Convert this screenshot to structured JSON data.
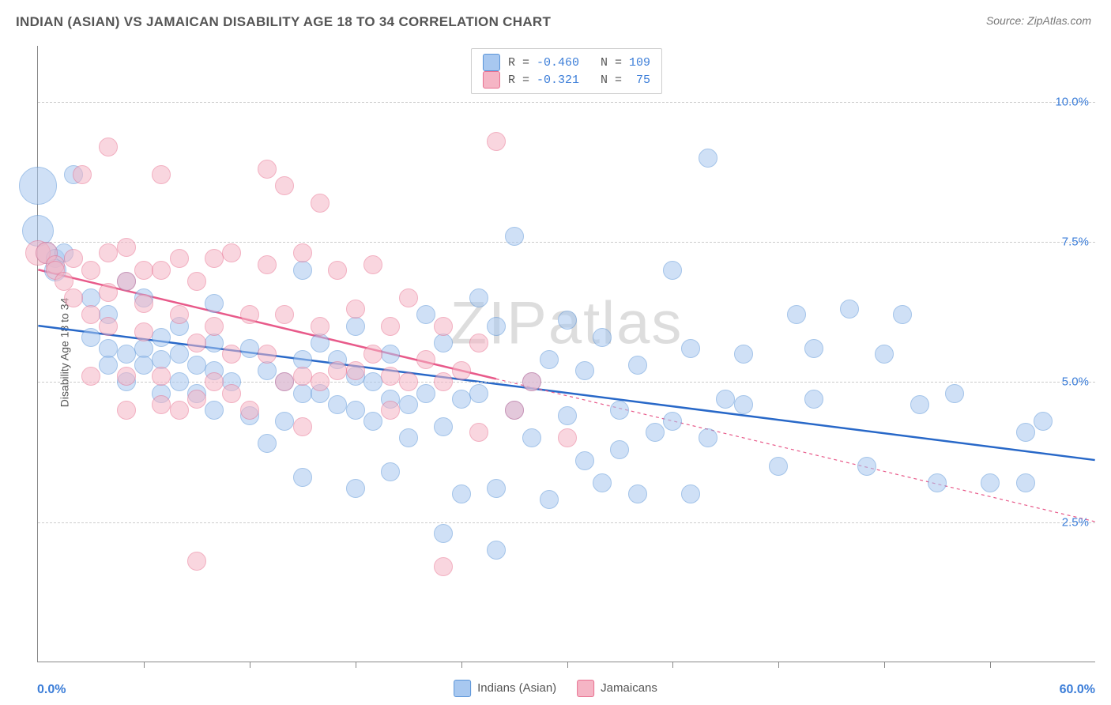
{
  "title": "INDIAN (ASIAN) VS JAMAICAN DISABILITY AGE 18 TO 34 CORRELATION CHART",
  "source": "Source: ZipAtlas.com",
  "ylabel": "Disability Age 18 to 34",
  "watermark": "ZIPatlas",
  "chart": {
    "type": "scatter",
    "xlim": [
      0,
      60
    ],
    "ylim": [
      0,
      11
    ],
    "x_left_label": "0.0%",
    "x_right_label": "60.0%",
    "x_label_color": "#3b7dd8",
    "xtick_positions": [
      6,
      12,
      18,
      24,
      30,
      36,
      42,
      48,
      54
    ],
    "yticks": [
      {
        "value": 2.5,
        "label": "2.5%",
        "color": "#3b7dd8"
      },
      {
        "value": 5.0,
        "label": "5.0%",
        "color": "#3b7dd8"
      },
      {
        "value": 7.5,
        "label": "7.5%",
        "color": "#3b7dd8"
      },
      {
        "value": 10.0,
        "label": "10.0%",
        "color": "#3b7dd8"
      }
    ],
    "grid_color": "#cccccc",
    "background_color": "#ffffff",
    "series": [
      {
        "name": "Indians (Asian)",
        "fill": "#a8c8f0",
        "stroke": "#5a94d8",
        "fill_opacity": 0.55,
        "line_color": "#2868c8",
        "line_width": 2.5,
        "line_dash": "none",
        "R": "-0.460",
        "N": "109",
        "trend": {
          "x1": 0,
          "y1": 6.0,
          "x2": 60,
          "y2": 3.6
        },
        "points": [
          [
            0,
            8.5,
            24
          ],
          [
            0,
            7.7,
            20
          ],
          [
            0.5,
            7.3,
            14
          ],
          [
            1,
            7.2,
            12
          ],
          [
            1,
            7.0,
            14
          ],
          [
            1.5,
            7.3,
            12
          ],
          [
            2,
            8.7,
            12
          ],
          [
            3,
            6.5,
            12
          ],
          [
            3,
            5.8,
            12
          ],
          [
            4,
            6.2,
            12
          ],
          [
            4,
            5.6,
            12
          ],
          [
            4,
            5.3,
            12
          ],
          [
            5,
            6.8,
            12
          ],
          [
            5,
            5.5,
            12
          ],
          [
            5,
            5.0,
            12
          ],
          [
            6,
            6.5,
            12
          ],
          [
            6,
            5.6,
            12
          ],
          [
            6,
            5.3,
            12
          ],
          [
            7,
            5.8,
            12
          ],
          [
            7,
            5.4,
            12
          ],
          [
            7,
            4.8,
            12
          ],
          [
            8,
            6.0,
            12
          ],
          [
            8,
            5.5,
            12
          ],
          [
            8,
            5.0,
            12
          ],
          [
            9,
            5.3,
            12
          ],
          [
            9,
            4.8,
            12
          ],
          [
            10,
            6.4,
            12
          ],
          [
            10,
            5.7,
            12
          ],
          [
            10,
            5.2,
            12
          ],
          [
            10,
            4.5,
            12
          ],
          [
            11,
            5.0,
            12
          ],
          [
            12,
            5.6,
            12
          ],
          [
            12,
            4.4,
            12
          ],
          [
            13,
            5.2,
            12
          ],
          [
            13,
            3.9,
            12
          ],
          [
            14,
            5.0,
            12
          ],
          [
            14,
            4.3,
            12
          ],
          [
            15,
            7.0,
            12
          ],
          [
            15,
            5.4,
            12
          ],
          [
            15,
            4.8,
            12
          ],
          [
            15,
            3.3,
            12
          ],
          [
            16,
            5.7,
            12
          ],
          [
            16,
            4.8,
            12
          ],
          [
            17,
            5.4,
            12
          ],
          [
            17,
            4.6,
            12
          ],
          [
            18,
            6.0,
            12
          ],
          [
            18,
            5.1,
            12
          ],
          [
            18,
            4.5,
            12
          ],
          [
            18,
            3.1,
            12
          ],
          [
            19,
            5.0,
            12
          ],
          [
            19,
            4.3,
            12
          ],
          [
            20,
            5.5,
            12
          ],
          [
            20,
            4.7,
            12
          ],
          [
            20,
            3.4,
            12
          ],
          [
            21,
            4.6,
            12
          ],
          [
            21,
            4.0,
            12
          ],
          [
            22,
            6.2,
            12
          ],
          [
            22,
            4.8,
            12
          ],
          [
            23,
            5.7,
            12
          ],
          [
            23,
            4.2,
            12
          ],
          [
            23,
            2.3,
            12
          ],
          [
            24,
            4.7,
            12
          ],
          [
            24,
            3.0,
            12
          ],
          [
            25,
            6.5,
            12
          ],
          [
            25,
            4.8,
            12
          ],
          [
            26,
            6.0,
            12
          ],
          [
            26,
            3.1,
            12
          ],
          [
            26,
            2.0,
            12
          ],
          [
            27,
            7.6,
            12
          ],
          [
            27,
            4.5,
            12
          ],
          [
            28,
            5.0,
            12
          ],
          [
            28,
            4.0,
            12
          ],
          [
            29,
            5.4,
            12
          ],
          [
            29,
            2.9,
            12
          ],
          [
            30,
            6.1,
            12
          ],
          [
            30,
            4.4,
            12
          ],
          [
            31,
            5.2,
            12
          ],
          [
            31,
            3.6,
            12
          ],
          [
            32,
            5.8,
            12
          ],
          [
            32,
            3.2,
            12
          ],
          [
            33,
            4.5,
            12
          ],
          [
            33,
            3.8,
            12
          ],
          [
            34,
            5.3,
            12
          ],
          [
            34,
            3.0,
            12
          ],
          [
            35,
            4.1,
            12
          ],
          [
            36,
            7.0,
            12
          ],
          [
            36,
            4.3,
            12
          ],
          [
            37,
            5.6,
            12
          ],
          [
            37,
            3.0,
            12
          ],
          [
            38,
            4.0,
            12
          ],
          [
            38,
            9.0,
            12
          ],
          [
            39,
            4.7,
            12
          ],
          [
            40,
            5.5,
            12
          ],
          [
            40,
            4.6,
            12
          ],
          [
            42,
            3.5,
            12
          ],
          [
            43,
            6.2,
            12
          ],
          [
            44,
            4.7,
            12
          ],
          [
            44,
            5.6,
            12
          ],
          [
            46,
            6.3,
            12
          ],
          [
            47,
            3.5,
            12
          ],
          [
            48,
            5.5,
            12
          ],
          [
            49,
            6.2,
            12
          ],
          [
            50,
            4.6,
            12
          ],
          [
            51,
            3.2,
            12
          ],
          [
            52,
            4.8,
            12
          ],
          [
            54,
            3.2,
            12
          ],
          [
            56,
            4.1,
            12
          ],
          [
            56,
            3.2,
            12
          ],
          [
            57,
            4.3,
            12
          ]
        ]
      },
      {
        "name": "Jamaicans",
        "fill": "#f5b5c5",
        "stroke": "#e87090",
        "fill_opacity": 0.55,
        "line_color": "#e85a8a",
        "line_width": 2.5,
        "line_dash": "none",
        "line_dash_after": "4,4",
        "trend": {
          "x1": 0,
          "y1": 7.0,
          "x2": 60,
          "y2": 2.5,
          "solid_until_x": 26
        },
        "R": "-0.321",
        "N": "75",
        "points": [
          [
            0,
            7.3,
            16
          ],
          [
            0.5,
            7.3,
            14
          ],
          [
            1,
            7.1,
            12
          ],
          [
            1,
            7.0,
            12
          ],
          [
            1.5,
            6.8,
            12
          ],
          [
            2,
            7.2,
            12
          ],
          [
            2,
            6.5,
            12
          ],
          [
            2.5,
            8.7,
            12
          ],
          [
            3,
            7.0,
            12
          ],
          [
            3,
            6.2,
            12
          ],
          [
            3,
            5.1,
            12
          ],
          [
            4,
            9.2,
            12
          ],
          [
            4,
            7.3,
            12
          ],
          [
            4,
            6.6,
            12
          ],
          [
            4,
            6.0,
            12
          ],
          [
            5,
            7.4,
            12
          ],
          [
            5,
            6.8,
            12
          ],
          [
            5,
            5.1,
            12
          ],
          [
            5,
            4.5,
            12
          ],
          [
            6,
            7.0,
            12
          ],
          [
            6,
            6.4,
            12
          ],
          [
            6,
            5.9,
            12
          ],
          [
            7,
            8.7,
            12
          ],
          [
            7,
            7.0,
            12
          ],
          [
            7,
            5.1,
            12
          ],
          [
            7,
            4.6,
            12
          ],
          [
            8,
            7.2,
            12
          ],
          [
            8,
            6.2,
            12
          ],
          [
            8,
            4.5,
            12
          ],
          [
            9,
            6.8,
            12
          ],
          [
            9,
            5.7,
            12
          ],
          [
            9,
            4.7,
            12
          ],
          [
            9,
            1.8,
            12
          ],
          [
            10,
            7.2,
            12
          ],
          [
            10,
            6.0,
            12
          ],
          [
            10,
            5.0,
            12
          ],
          [
            11,
            7.3,
            12
          ],
          [
            11,
            5.5,
            12
          ],
          [
            11,
            4.8,
            12
          ],
          [
            12,
            6.2,
            12
          ],
          [
            12,
            4.5,
            12
          ],
          [
            13,
            8.8,
            12
          ],
          [
            13,
            7.1,
            12
          ],
          [
            13,
            5.5,
            12
          ],
          [
            14,
            8.5,
            12
          ],
          [
            14,
            6.2,
            12
          ],
          [
            14,
            5.0,
            12
          ],
          [
            15,
            7.3,
            12
          ],
          [
            15,
            5.1,
            12
          ],
          [
            15,
            4.2,
            12
          ],
          [
            16,
            8.2,
            12
          ],
          [
            16,
            6.0,
            12
          ],
          [
            16,
            5.0,
            12
          ],
          [
            17,
            7.0,
            12
          ],
          [
            17,
            5.2,
            12
          ],
          [
            18,
            6.3,
            12
          ],
          [
            18,
            5.2,
            12
          ],
          [
            19,
            7.1,
            12
          ],
          [
            19,
            5.5,
            12
          ],
          [
            20,
            6.0,
            12
          ],
          [
            20,
            5.1,
            12
          ],
          [
            20,
            4.5,
            12
          ],
          [
            21,
            6.5,
            12
          ],
          [
            21,
            5.0,
            12
          ],
          [
            22,
            5.4,
            12
          ],
          [
            23,
            6.0,
            12
          ],
          [
            23,
            5.0,
            12
          ],
          [
            23,
            1.7,
            12
          ],
          [
            24,
            5.2,
            12
          ],
          [
            25,
            5.7,
            12
          ],
          [
            25,
            4.1,
            12
          ],
          [
            26,
            9.3,
            12
          ],
          [
            27,
            4.5,
            12
          ],
          [
            28,
            5.0,
            12
          ],
          [
            30,
            4.0,
            12
          ]
        ]
      }
    ]
  },
  "bottom_legend": [
    {
      "label": "Indians (Asian)",
      "fill": "#a8c8f0",
      "stroke": "#5a94d8"
    },
    {
      "label": "Jamaicans",
      "fill": "#f5b5c5",
      "stroke": "#e87090"
    }
  ],
  "stat_label_color": "#555555",
  "stat_value_color": "#3b7dd8"
}
